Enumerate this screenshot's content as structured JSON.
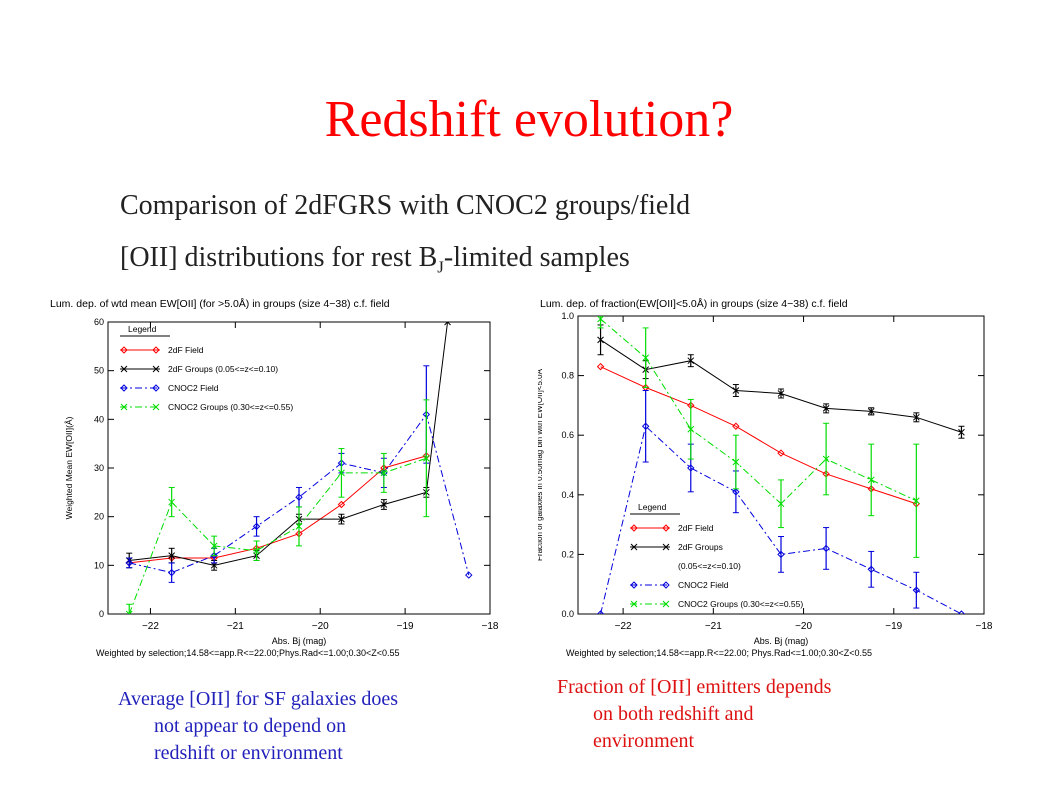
{
  "slide": {
    "title": "Redshift evolution?",
    "subtitle_1": "Comparison of 2dFGRS with CNOC2 groups/field",
    "subtitle_2_pre": "[OII] distributions for rest B",
    "subtitle_2_sub": "J",
    "subtitle_2_post": "-limited samples"
  },
  "captions": {
    "left": [
      "Average [OII] for SF galaxies does",
      "not appear to depend on",
      "redshift or environment"
    ],
    "right": [
      "Fraction of [OII] emitters depends",
      "on both redshift and",
      "environment"
    ]
  },
  "colors": {
    "title": "#ff0000",
    "left_caption": "#2222bb",
    "right_caption": "#dd1111",
    "field2dF": "#ff0000",
    "groups2dF": "#000000",
    "cnocField": "#0000dd",
    "cnocGroups": "#00dd00"
  },
  "chart_data": [
    {
      "type": "line",
      "title": "Lum. dep. of wtd mean EW[OII] (for >5.0Å) in groups (size 4−38) c.f. field",
      "xlabel": "Abs. Bj (mag)",
      "ylabel": "Weighted Mean EW[OII](Å)",
      "footer": "Weighted by selection;14.58<=app.R<=22.00;Phys.Rad<=1.00;0.30<Z<0.55",
      "xlim": [
        -22.5,
        -18
      ],
      "ylim": [
        0,
        60
      ],
      "xticks": [
        -22,
        -21,
        -20,
        -19,
        -18
      ],
      "yticks": [
        0,
        10,
        20,
        30,
        40,
        50,
        60
      ],
      "legend_title": "Legend",
      "legend_position": "top-left",
      "series": [
        {
          "name": "2dF Field",
          "style": "solid",
          "marker": "diamond",
          "color": "#ff0000",
          "x": [
            -22.25,
            -21.75,
            -21.25,
            -20.75,
            -20.25,
            -19.75,
            -19.25,
            -18.75
          ],
          "y": [
            10.5,
            11.5,
            11.5,
            13.5,
            16.5,
            22.5,
            30,
            32.5
          ],
          "err": [
            0,
            0,
            0,
            0,
            0,
            0,
            0,
            0
          ]
        },
        {
          "name": "2dF Groups (0.05<=z<=0.10)",
          "style": "solid",
          "marker": "x",
          "color": "#000000",
          "x": [
            -22.25,
            -21.75,
            -21.25,
            -20.75,
            -20.25,
            -19.75,
            -19.25,
            -18.75,
            -18.5
          ],
          "y": [
            11,
            12,
            10,
            12,
            19.5,
            19.5,
            22.5,
            25,
            60
          ],
          "err": [
            1.5,
            1.5,
            1,
            1,
            1,
            1,
            1,
            1,
            0
          ]
        },
        {
          "name": "CNOC2 Field",
          "style": "dashdot",
          "marker": "diamond",
          "color": "#0000dd",
          "x": [
            -22.25,
            -21.75,
            -21.25,
            -20.75,
            -20.25,
            -19.75,
            -19.25,
            -18.75,
            -18.25
          ],
          "y": [
            10.5,
            8.5,
            12,
            18,
            24,
            31,
            29,
            41,
            8
          ],
          "err": [
            1,
            2,
            1.5,
            2,
            2,
            2,
            3,
            10,
            0
          ]
        },
        {
          "name": "CNOC2 Groups (0.30<=z<=0.55)",
          "style": "dashdot",
          "marker": "x",
          "color": "#00dd00",
          "x": [
            -22.25,
            -21.75,
            -21.25,
            -20.75,
            -20.25,
            -19.75,
            -19.25,
            -18.75
          ],
          "y": [
            0,
            23,
            14,
            13,
            18,
            29,
            29,
            32
          ],
          "err": [
            2,
            3,
            2,
            2,
            4,
            5,
            4,
            12
          ]
        }
      ]
    },
    {
      "type": "line",
      "title": "Lum. dep. of fraction(EW[OII]<5.0Å)  in groups (size 4−38) c.f. field",
      "xlabel": "Abs. Bj (mag)",
      "ylabel": "Fraction of galaxies in 0.50mag bin with EW[OII]<5.0Å",
      "footer": "Weighted by selection;14.58<=app.R<=22.00; Phys.Rad<=1.00;0.30<Z<0.55",
      "xlim": [
        -22.5,
        -18
      ],
      "ylim": [
        0,
        1
      ],
      "xticks": [
        -22,
        -21,
        -20,
        -19,
        -18
      ],
      "yticks": [
        0.0,
        0.2,
        0.4,
        0.6,
        0.8,
        1.0
      ],
      "legend_title": "Legend",
      "legend_position": "bottom-left",
      "series": [
        {
          "name": "2dF Field",
          "style": "solid",
          "marker": "diamond",
          "color": "#ff0000",
          "x": [
            -22.25,
            -21.75,
            -21.25,
            -20.75,
            -20.25,
            -19.75,
            -19.25,
            -18.75
          ],
          "y": [
            0.83,
            0.76,
            0.7,
            0.63,
            0.54,
            0.47,
            0.42,
            0.37
          ],
          "err": [
            0,
            0,
            0,
            0,
            0,
            0,
            0,
            0
          ]
        },
        {
          "name": "2dF Groups",
          "style": "solid",
          "marker": "x",
          "color": "#000000",
          "x": [
            -22.25,
            -21.75,
            -21.25,
            -20.75,
            -20.25,
            -19.75,
            -19.25,
            -18.75,
            -18.25
          ],
          "y": [
            0.92,
            0.82,
            0.85,
            0.75,
            0.74,
            0.69,
            0.68,
            0.66,
            0.61
          ],
          "err": [
            0.05,
            0.03,
            0.02,
            0.02,
            0.015,
            0.015,
            0.012,
            0.015,
            0.02
          ]
        },
        {
          "name": "CNOC2 Field",
          "style": "dashdot",
          "marker": "diamond",
          "color": "#0000dd",
          "x": [
            -22.25,
            -21.75,
            -21.25,
            -20.75,
            -20.25,
            -19.75,
            -19.25,
            -18.75,
            -18.25
          ],
          "y": [
            0.0,
            0.63,
            0.49,
            0.41,
            0.2,
            0.22,
            0.15,
            0.08,
            0.0
          ],
          "err": [
            0,
            0.12,
            0.08,
            0.07,
            0.06,
            0.07,
            0.06,
            0.06,
            0
          ]
        },
        {
          "name": "CNOC2 Groups (0.30<=z<=0.55)",
          "style": "dashdot",
          "marker": "x",
          "color": "#00dd00",
          "x": [
            -22.25,
            -21.75,
            -21.25,
            -20.75,
            -20.25,
            -19.75,
            -19.25,
            -18.75
          ],
          "y": [
            0.99,
            0.86,
            0.62,
            0.51,
            0.37,
            0.52,
            0.45,
            0.38
          ],
          "err": [
            0.03,
            0.1,
            0.1,
            0.09,
            0.08,
            0.12,
            0.12,
            0.19
          ]
        }
      ]
    }
  ]
}
